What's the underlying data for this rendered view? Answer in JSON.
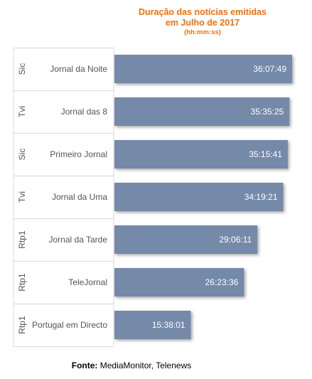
{
  "title": {
    "line1": "Duração das notícias emitidas",
    "line2": "em Julho de 2017",
    "unit": "(hh:mm:ss)"
  },
  "colors": {
    "bar": "#7489a8",
    "title": "#f07010",
    "label": "#555555",
    "grid": "#d8d8d8"
  },
  "source": {
    "label": "Fonte:",
    "text": "MediaMonitor, Telenews"
  },
  "chart_data": {
    "type": "bar",
    "orientation": "horizontal",
    "title": "Duração das notícias emitidas em Julho de 2017 (hh:mm:ss)",
    "categories": [
      {
        "channel": "Sic",
        "program": "Jornal da Noite"
      },
      {
        "channel": "Tvi",
        "program": "Jornal das 8"
      },
      {
        "channel": "Sic",
        "program": "Primeiro Jornal"
      },
      {
        "channel": "Tvi",
        "program": "Jornal da Uma"
      },
      {
        "channel": "Rtp1",
        "program": "Jornal da Tarde"
      },
      {
        "channel": "Rtp1",
        "program": "TeleJornal"
      },
      {
        "channel": "Rtp1",
        "program": "Portugal em Directo"
      }
    ],
    "values": [
      "36:07:49",
      "35:35:25",
      "35:15:41",
      "34:19:21",
      "29:06:11",
      "26:23:36",
      "15:38:01"
    ],
    "value_labels": [
      "36:07:49",
      "35:35:25",
      "35:15:41",
      "34:19:21",
      "29:06:11",
      "26:23:36",
      "15:38:01"
    ],
    "xlim": [
      "00:00:00",
      "36:07:49"
    ]
  }
}
